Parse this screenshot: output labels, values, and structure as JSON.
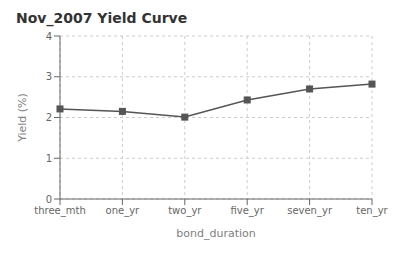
{
  "chart_data": {
    "type": "line",
    "title": "Nov_2007 Yield Curve",
    "x_label": "bond_duration",
    "y_label": "Yield (%)",
    "categories": [
      "three_mth",
      "one_yr",
      "two_yr",
      "five_yr",
      "seven_yr",
      "ten_yr"
    ],
    "values": [
      2.21,
      2.15,
      2.01,
      2.43,
      2.7,
      2.82
    ],
    "color": "#555555",
    "marker": "square",
    "ylim": [
      0,
      4
    ],
    "yticks": [
      0,
      1,
      2,
      3,
      4
    ],
    "grid": true
  }
}
